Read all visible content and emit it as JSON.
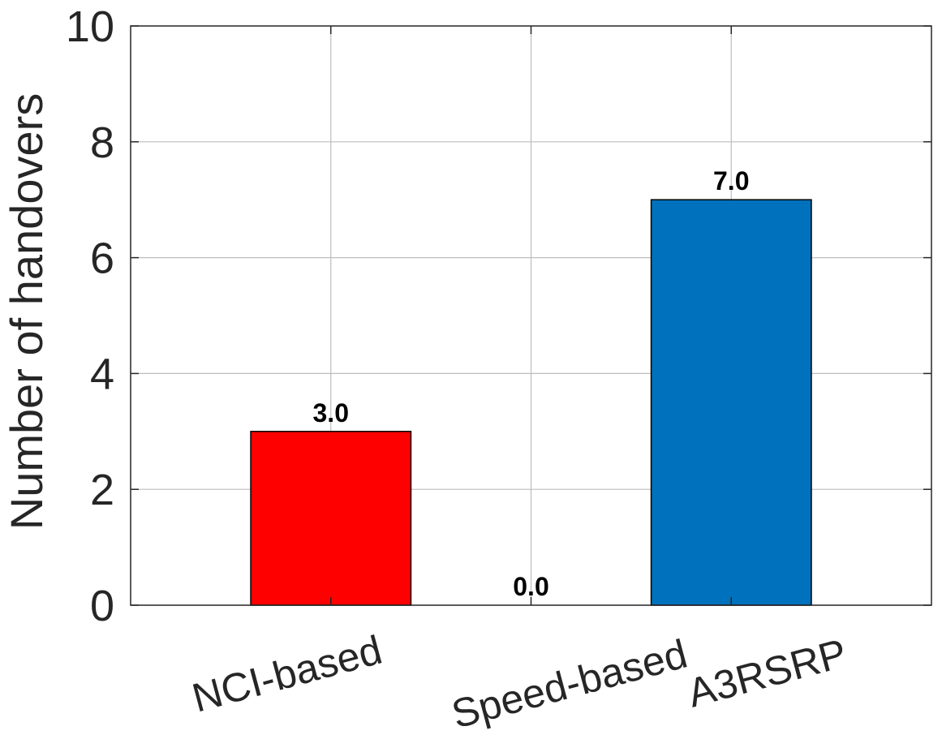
{
  "chart_data": {
    "type": "bar",
    "title": "",
    "xlabel": "",
    "ylabel": "Number of handovers",
    "categories": [
      "NCI-based",
      "Speed-based",
      "A3RSRP"
    ],
    "values": [
      3.0,
      0.0,
      7.0
    ],
    "data_labels": [
      "3.0",
      "0.0",
      "7.0"
    ],
    "bar_colors": [
      "#ff0000",
      "#ff0000",
      "#0072bd"
    ],
    "ylim": [
      0,
      10
    ],
    "yticks": [
      0,
      2,
      4,
      6,
      8,
      10
    ],
    "ytick_labels": [
      "0",
      "2",
      "4",
      "6",
      "8",
      "10"
    ],
    "grid": true,
    "legend": "none"
  }
}
